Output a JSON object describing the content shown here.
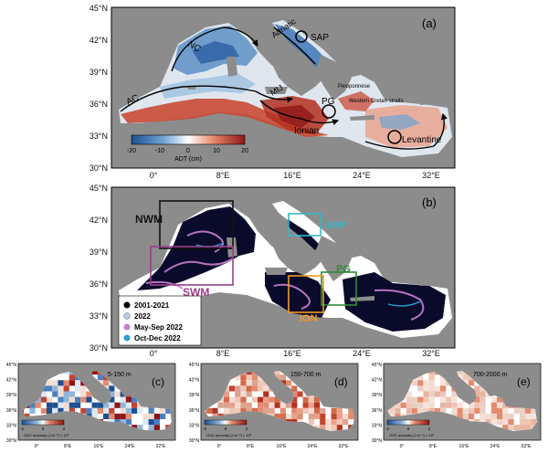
{
  "panel_a": {
    "label": "(a)",
    "lat_ticks": [
      "45°N",
      "42°N",
      "39°N",
      "36°N",
      "33°N",
      "30°N"
    ],
    "lon_ticks": [
      "0°",
      "8°E",
      "16°E",
      "24°E",
      "32°E"
    ],
    "labels": {
      "adriatic": "Adriatic",
      "sap": "SAP",
      "nc": "NC",
      "ac": "AC",
      "mij": "MIJ",
      "pg": "PG",
      "peloponnese": "Peloponnese",
      "western_cretan_straits": "Western Cretan straits",
      "ionian": "Ionian",
      "levantine": "Levantine"
    },
    "colorbar": {
      "ticks": [
        "-20",
        "-10",
        "0",
        "10",
        "20"
      ],
      "title": "ADT (cm)",
      "colors": [
        "#1d4f91",
        "#6fa3d2",
        "#ffffff",
        "#e88a6a",
        "#8e1616"
      ]
    }
  },
  "panel_b": {
    "label": "(b)",
    "lat_ticks": [
      "45°N",
      "42°N",
      "39°N",
      "36°N",
      "33°N",
      "30°N"
    ],
    "lon_ticks": [
      "0°",
      "8°E",
      "16°E",
      "24°E",
      "32°E"
    ],
    "regions": {
      "nwm": "NWM",
      "swm": "SWM",
      "sap": "SAP",
      "pg": "PG",
      "ion": "ION"
    },
    "region_colors": {
      "nwm": "#111111",
      "swm": "#9b3e8c",
      "sap": "#39b7c4",
      "pg": "#2e8b3a",
      "ion": "#f29a1f"
    },
    "legend": [
      {
        "label": "2001-2021",
        "color": "#000000"
      },
      {
        "label": "2022",
        "color": "#b8c8e6"
      },
      {
        "label": "May-Sep 2022",
        "color": "#c97fd0"
      },
      {
        "label": "Oct-Dec 2022",
        "color": "#2a9fd6"
      }
    ]
  },
  "small_panels": [
    {
      "label": "(c)",
      "depth": "5-150 m",
      "cbar_ticks": [
        "-2",
        "0",
        "2"
      ],
      "cbar_title": "OHC anomaly (J m⁻²) × 10⁹"
    },
    {
      "label": "(d)",
      "depth": "150-700 m",
      "cbar_ticks": [
        "-2",
        "0",
        "2"
      ],
      "cbar_title": "OHC anomaly (J m⁻²) × 10⁹"
    },
    {
      "label": "(e)",
      "depth": "700-2000 m",
      "cbar_ticks": [
        "-2",
        "0",
        "2"
      ],
      "cbar_title": "OHC anomaly (J m⁻²) × 10⁹"
    }
  ],
  "small_lat_ticks": [
    "45°N",
    "42°N",
    "39°N",
    "36°N",
    "33°N",
    "30°N"
  ],
  "small_lon_ticks": [
    "0°",
    "8°E",
    "16°E",
    "24°E",
    "32°E"
  ]
}
